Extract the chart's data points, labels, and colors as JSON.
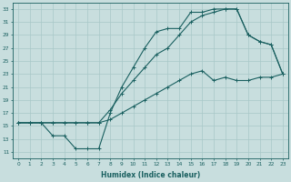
{
  "xlabel": "Humidex (Indice chaleur)",
  "bg_color": "#c8dede",
  "grid_color": "#a8c8c8",
  "line_color": "#1a6060",
  "xlim": [
    -0.5,
    23.5
  ],
  "ylim": [
    10,
    34
  ],
  "yticks": [
    11,
    13,
    15,
    17,
    19,
    21,
    23,
    25,
    27,
    29,
    31,
    33
  ],
  "xticks": [
    0,
    1,
    2,
    3,
    4,
    5,
    6,
    7,
    8,
    9,
    10,
    11,
    12,
    13,
    14,
    15,
    16,
    17,
    18,
    19,
    20,
    21,
    22,
    23
  ],
  "line1_x": [
    0,
    1,
    2,
    3,
    4,
    5,
    6,
    7,
    8,
    9,
    10,
    11,
    12,
    13,
    14,
    15,
    16,
    17,
    18,
    19,
    20,
    21,
    22,
    23
  ],
  "line1_y": [
    15.5,
    15.5,
    15.5,
    13.5,
    13.5,
    11.5,
    11.5,
    11.5,
    17,
    21,
    24,
    27,
    29.5,
    30,
    30,
    32.5,
    32.5,
    33,
    33,
    33,
    29,
    28,
    27.5,
    23
  ],
  "line2_x": [
    0,
    1,
    2,
    3,
    4,
    5,
    6,
    7,
    8,
    9,
    10,
    11,
    12,
    13,
    14,
    15,
    16,
    17,
    18,
    19,
    20,
    21,
    22,
    23
  ],
  "line2_y": [
    15.5,
    15.5,
    15.5,
    15.5,
    15.5,
    15.5,
    15.5,
    15.5,
    17.5,
    20,
    22,
    24,
    26,
    27,
    29,
    31,
    32,
    32.5,
    33,
    33,
    29,
    28,
    27.5,
    23
  ],
  "line3_x": [
    0,
    1,
    2,
    3,
    4,
    5,
    6,
    7,
    8,
    9,
    10,
    11,
    12,
    13,
    14,
    15,
    16,
    17,
    18,
    19,
    20,
    21,
    22,
    23
  ],
  "line3_y": [
    15.5,
    15.5,
    15.5,
    15.5,
    15.5,
    15.5,
    15.5,
    15.5,
    16,
    17,
    18,
    19,
    20,
    21,
    22,
    23,
    23.5,
    22,
    22.5,
    22,
    22,
    22.5,
    22.5,
    23
  ]
}
